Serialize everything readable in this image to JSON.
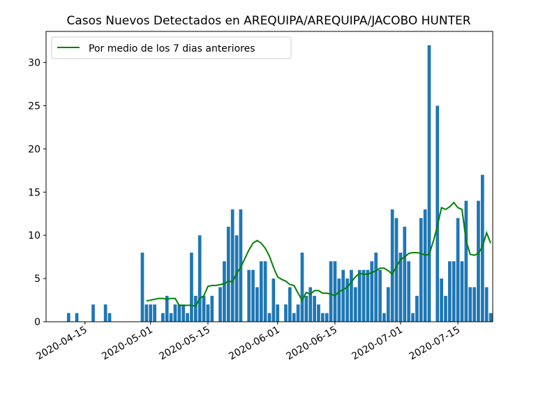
{
  "chart_data": {
    "type": "bar",
    "title": "Casos Nuevos Detectados en AREQUIPA/AREQUIPA/JACOBO HUNTER",
    "xlabel": "",
    "ylabel": "",
    "ylim": [
      0,
      33.6
    ],
    "yticks": [
      0,
      5,
      10,
      15,
      20,
      25,
      30
    ],
    "xlim": [
      "2020-04-06",
      "2020-07-23"
    ],
    "xtick_labels": [
      "2020-04-15",
      "2020-05-01",
      "2020-05-15",
      "2020-06-01",
      "2020-06-15",
      "2020-07-01",
      "2020-07-15"
    ],
    "x_tick_dates": [
      "2020-04-15",
      "2020-05-01",
      "2020-05-15",
      "2020-06-01",
      "2020-06-15",
      "2020-07-01",
      "2020-07-15"
    ],
    "legend": {
      "position": "top-left",
      "entries": [
        "Por medio de los 7 dias anteriores"
      ]
    },
    "colors": {
      "bars": "#1f77b4",
      "line": "#008000",
      "axes": "#000000"
    },
    "bars": {
      "dates": [
        "2020-04-11",
        "2020-04-13",
        "2020-04-17",
        "2020-04-20",
        "2020-04-21",
        "2020-04-29",
        "2020-04-30",
        "2020-05-01",
        "2020-05-02",
        "2020-05-04",
        "2020-05-05",
        "2020-05-06",
        "2020-05-07",
        "2020-05-08",
        "2020-05-09",
        "2020-05-10",
        "2020-05-11",
        "2020-05-12",
        "2020-05-13",
        "2020-05-14",
        "2020-05-15",
        "2020-05-16",
        "2020-05-18",
        "2020-05-19",
        "2020-05-20",
        "2020-05-21",
        "2020-05-22",
        "2020-05-23",
        "2020-05-25",
        "2020-05-26",
        "2020-05-27",
        "2020-05-28",
        "2020-05-29",
        "2020-05-30",
        "2020-05-31",
        "2020-06-01",
        "2020-06-03",
        "2020-06-04",
        "2020-06-05",
        "2020-06-06",
        "2020-06-07",
        "2020-06-08",
        "2020-06-09",
        "2020-06-10",
        "2020-06-11",
        "2020-06-12",
        "2020-06-13",
        "2020-06-14",
        "2020-06-15",
        "2020-06-16",
        "2020-06-17",
        "2020-06-18",
        "2020-06-19",
        "2020-06-20",
        "2020-06-21",
        "2020-06-22",
        "2020-06-23",
        "2020-06-24",
        "2020-06-25",
        "2020-06-26",
        "2020-06-27",
        "2020-06-28",
        "2020-06-29",
        "2020-06-30",
        "2020-07-01",
        "2020-07-02",
        "2020-07-03",
        "2020-07-04",
        "2020-07-05",
        "2020-07-06",
        "2020-07-07",
        "2020-07-08",
        "2020-07-10",
        "2020-07-11",
        "2020-07-12",
        "2020-07-13",
        "2020-07-14",
        "2020-07-15",
        "2020-07-16",
        "2020-07-17",
        "2020-07-18",
        "2020-07-19",
        "2020-07-20",
        "2020-07-21",
        "2020-07-22",
        "2020-07-23"
      ],
      "values": [
        1,
        1,
        2,
        2,
        1,
        8,
        2,
        2,
        2,
        1,
        3,
        1,
        2,
        2,
        2,
        1,
        8,
        3,
        10,
        3,
        2,
        3,
        4,
        7,
        11,
        13,
        10,
        13,
        6,
        6,
        4,
        7,
        7,
        1,
        5,
        2,
        2,
        4,
        1,
        2,
        8,
        3,
        4,
        3,
        2,
        1,
        1,
        7,
        7,
        5,
        6,
        5,
        6,
        4,
        6,
        6,
        6,
        7,
        8,
        6,
        1,
        4,
        13,
        12,
        8,
        11,
        7,
        1,
        3,
        12,
        13,
        32,
        25,
        5,
        3,
        7,
        7,
        12,
        7,
        14,
        4,
        4,
        14,
        17,
        4,
        1
      ]
    },
    "series": [
      {
        "name": "Por medio de los 7 dias anteriores",
        "x": [
          "2020-04-30",
          "2020-05-01",
          "2020-05-02",
          "2020-05-03",
          "2020-05-04",
          "2020-05-05",
          "2020-05-06",
          "2020-05-07",
          "2020-05-08",
          "2020-05-09",
          "2020-05-10",
          "2020-05-11",
          "2020-05-12",
          "2020-05-13",
          "2020-05-14",
          "2020-05-15",
          "2020-05-16",
          "2020-05-17",
          "2020-05-18",
          "2020-05-19",
          "2020-05-20",
          "2020-05-21",
          "2020-05-22",
          "2020-05-23",
          "2020-05-24",
          "2020-05-25",
          "2020-05-26",
          "2020-05-27",
          "2020-05-28",
          "2020-05-29",
          "2020-05-30",
          "2020-05-31",
          "2020-06-01",
          "2020-06-02",
          "2020-06-03",
          "2020-06-04",
          "2020-06-05",
          "2020-06-06",
          "2020-06-07",
          "2020-06-08",
          "2020-06-09",
          "2020-06-10",
          "2020-06-11",
          "2020-06-12",
          "2020-06-13",
          "2020-06-14",
          "2020-06-15",
          "2020-06-16",
          "2020-06-17",
          "2020-06-18",
          "2020-06-19",
          "2020-06-20",
          "2020-06-21",
          "2020-06-22",
          "2020-06-23",
          "2020-06-24",
          "2020-06-25",
          "2020-06-26",
          "2020-06-27",
          "2020-06-28",
          "2020-06-29",
          "2020-06-30",
          "2020-07-01",
          "2020-07-02",
          "2020-07-03",
          "2020-07-04",
          "2020-07-05",
          "2020-07-06",
          "2020-07-07",
          "2020-07-08",
          "2020-07-09",
          "2020-07-10",
          "2020-07-11",
          "2020-07-12",
          "2020-07-13",
          "2020-07-14",
          "2020-07-15",
          "2020-07-16",
          "2020-07-17",
          "2020-07-18",
          "2020-07-19",
          "2020-07-20",
          "2020-07-21",
          "2020-07-22",
          "2020-07-23"
        ],
        "values": [
          2.4,
          2.5,
          2.6,
          2.7,
          2.7,
          2.6,
          2.7,
          2.7,
          1.9,
          1.9,
          1.9,
          1.9,
          1.8,
          2.7,
          3,
          4.1,
          4.2,
          4.2,
          4.3,
          4.4,
          4.7,
          4.6,
          5.6,
          6.3,
          7.3,
          8.3,
          9.1,
          9.4,
          9.1,
          8.5,
          7.6,
          6.3,
          5.2,
          4.9,
          4.7,
          4.3,
          4.2,
          3.3,
          2.5,
          3.4,
          3.2,
          3.6,
          3.6,
          3.3,
          3.3,
          3.2,
          3,
          3.5,
          3.7,
          4,
          4.6,
          5.2,
          5.6,
          5.5,
          5.5,
          5.7,
          5.9,
          6.2,
          6.2,
          5.9,
          5.5,
          6.4,
          7.2,
          7.5,
          7.9,
          8,
          8,
          7.9,
          7.7,
          7.8,
          9.3,
          11.1,
          13.2,
          13,
          13.3,
          13.8,
          13.2,
          13,
          9.4,
          7.8,
          7.7,
          7.9,
          8.7,
          10.3,
          9.1
        ]
      }
    ]
  }
}
